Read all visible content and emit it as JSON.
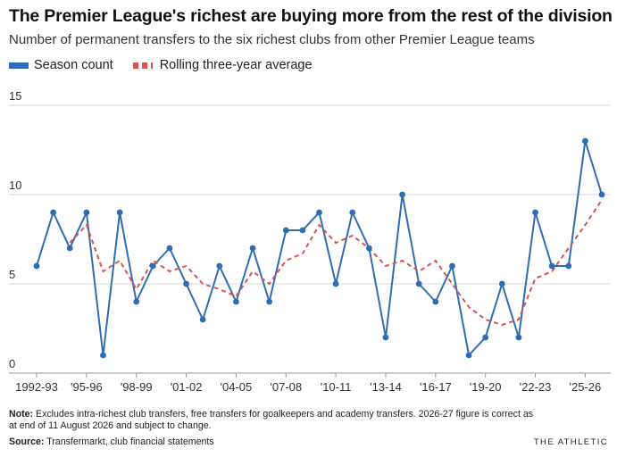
{
  "header": {
    "title": "The Premier League's richest are buying more from the rest of the division",
    "subtitle": "Number of permanent transfers to the six richest clubs from other Premier League teams"
  },
  "legend": {
    "season_label": "Season count",
    "rolling_label": "Rolling three-year average"
  },
  "colors": {
    "season": "#2f6db3",
    "rolling": "#d9534f",
    "grid": "#d9d9d9",
    "axis_text": "#333333"
  },
  "footer": {
    "note_label": "Note:",
    "note_text": " Excludes intra-richest club transfers, free transfers for goalkeepers and academy transfers. 2026-27 figure is correct as at end of 11 August 2026 and subject to change.",
    "source_label": "Source:",
    "source_text": " Transfermarkt, club financial statements",
    "brand": "THE ATHLETIC"
  },
  "chart_data": {
    "type": "line",
    "title": "The Premier League's richest are buying more from the rest of the division",
    "subtitle": "Number of permanent transfers to the six richest clubs from other Premier League teams",
    "xlabel": "",
    "ylabel": "",
    "ylim": [
      0,
      15
    ],
    "yticks": [
      0,
      5,
      10,
      15
    ],
    "grid": true,
    "legend_position": "top-left",
    "categories": [
      "1992-93",
      "1993-94",
      "1994-95",
      "1995-96",
      "1996-97",
      "1997-98",
      "1998-99",
      "1999-00",
      "2000-01",
      "2001-02",
      "2002-03",
      "2003-04",
      "2004-05",
      "2005-06",
      "2006-07",
      "2007-08",
      "2008-09",
      "2009-10",
      "2010-11",
      "2011-12",
      "2012-13",
      "2013-14",
      "2014-15",
      "2015-16",
      "2016-17",
      "2017-18",
      "2018-19",
      "2019-20",
      "2020-21",
      "2021-22",
      "2022-23",
      "2023-24",
      "2024-25",
      "2025-26",
      "2026-27"
    ],
    "x_tick_labels": [
      {
        "index": 0,
        "label": "1992-93"
      },
      {
        "index": 3,
        "label": "'95-96"
      },
      {
        "index": 6,
        "label": "'98-99"
      },
      {
        "index": 9,
        "label": "'01-02"
      },
      {
        "index": 12,
        "label": "'04-05"
      },
      {
        "index": 15,
        "label": "'07-08"
      },
      {
        "index": 18,
        "label": "'10-11"
      },
      {
        "index": 21,
        "label": "'13-14"
      },
      {
        "index": 24,
        "label": "'16-17"
      },
      {
        "index": 27,
        "label": "'19-20"
      },
      {
        "index": 30,
        "label": "'22-23"
      },
      {
        "index": 33,
        "label": "'25-26"
      }
    ],
    "series": [
      {
        "name": "Season count",
        "style": "solid-with-markers",
        "values": [
          6,
          9,
          7,
          9,
          1,
          9,
          4,
          6,
          7,
          5,
          3,
          6,
          4,
          7,
          4,
          8,
          8,
          9,
          5,
          9,
          7,
          2,
          10,
          5,
          4,
          6,
          1,
          2,
          5,
          2,
          9,
          6,
          6,
          13,
          10
        ]
      },
      {
        "name": "Rolling three-year average",
        "style": "dashed",
        "values": [
          null,
          null,
          7.3,
          8.3,
          5.7,
          6.3,
          4.7,
          6.3,
          5.7,
          6.0,
          5.0,
          4.7,
          4.3,
          5.7,
          5.0,
          6.3,
          6.7,
          8.3,
          7.3,
          7.7,
          7.0,
          6.0,
          6.3,
          5.7,
          6.3,
          5.0,
          3.7,
          3.0,
          2.7,
          3.0,
          5.3,
          5.7,
          7.0,
          8.3,
          9.7
        ]
      }
    ]
  }
}
